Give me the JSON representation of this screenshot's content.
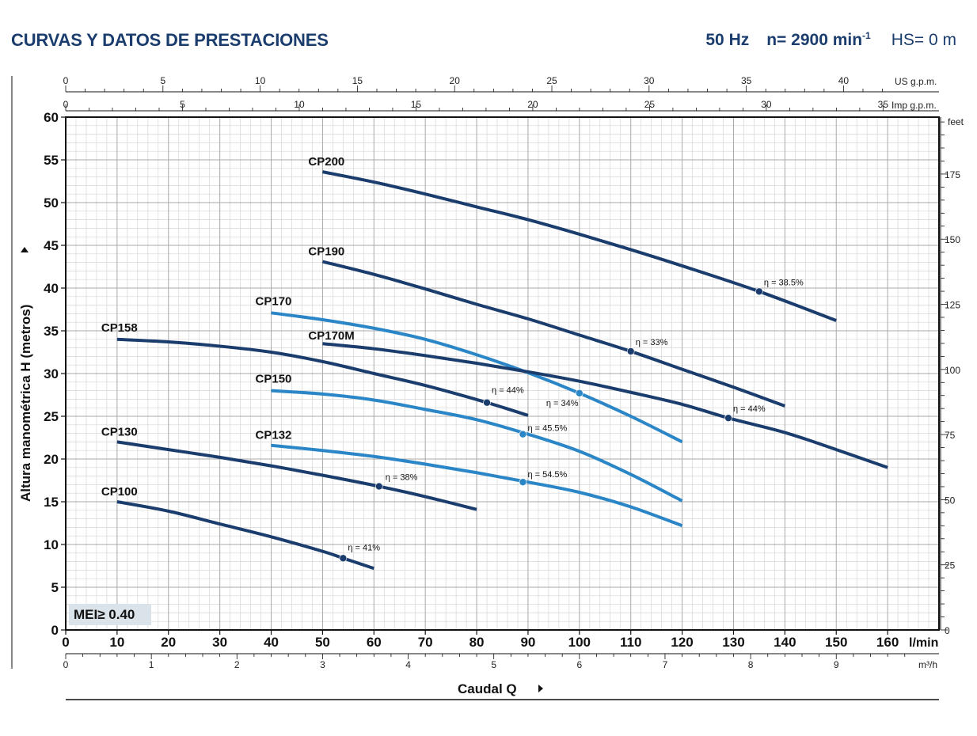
{
  "header": {
    "title": "CURVAS Y DATOS DE PRESTACIONES",
    "freq": "50 Hz",
    "speed": "n= 2900 min",
    "speed_exp": "-1",
    "hs": "HS= 0 m"
  },
  "mei_badge": "MEI≥ 0.40",
  "chart_data": {
    "type": "line",
    "title": "CURVAS Y DATOS DE PRESTACIONES",
    "xlabel": "Caudal Q",
    "ylabel": "Altura manométrica H (metros)",
    "x_unit": "l/min",
    "xlim": [
      0,
      170
    ],
    "ylim": [
      0,
      60
    ],
    "x_ticks": [
      0,
      10,
      20,
      30,
      40,
      50,
      60,
      70,
      80,
      90,
      100,
      110,
      120,
      130,
      140,
      150,
      160
    ],
    "y_ticks": [
      0,
      5,
      10,
      15,
      20,
      25,
      30,
      35,
      40,
      45,
      50,
      55,
      60
    ],
    "grid": true,
    "secondary_axes": {
      "us_gpm": {
        "label": "US g.p.m.",
        "ticks": [
          0,
          5,
          10,
          15,
          20,
          25,
          30,
          35,
          40
        ]
      },
      "imp_gpm": {
        "label": "Imp g.p.m.",
        "ticks": [
          0,
          5,
          10,
          15,
          20,
          25,
          30,
          35
        ]
      },
      "m3h": {
        "label": "m³/h",
        "ticks": [
          0,
          1,
          2,
          3,
          4,
          5,
          6,
          7,
          8,
          9
        ]
      },
      "feet": {
        "label": "feet",
        "ticks": [
          0,
          25,
          50,
          75,
          100,
          125,
          150,
          175
        ]
      }
    },
    "series": [
      {
        "name": "CP100",
        "color": "#1b3d6e",
        "x": [
          10,
          20,
          30,
          40,
          50,
          54,
          60
        ],
        "y": [
          15,
          13.9,
          12.4,
          10.9,
          9.2,
          8.4,
          7.2
        ],
        "eff": {
          "x": 54,
          "y": 8.4,
          "label": "η = 41%"
        }
      },
      {
        "name": "CP130",
        "color": "#1b3d6e",
        "x": [
          10,
          20,
          30,
          40,
          50,
          61,
          70,
          80
        ],
        "y": [
          22,
          21.1,
          20.2,
          19.2,
          18.1,
          16.8,
          15.6,
          14.1
        ],
        "eff": {
          "x": 61,
          "y": 16.8,
          "label": "η = 38%"
        }
      },
      {
        "name": "CP132",
        "color": "#2a86c6",
        "x": [
          40,
          50,
          60,
          70,
          80,
          90,
          100,
          110,
          120
        ],
        "y": [
          21.6,
          21.0,
          20.3,
          19.4,
          18.4,
          17.3,
          16.1,
          14.4,
          12.2
        ],
        "eff": {
          "x": 89,
          "y": 17.3,
          "label": "η = 54.5%"
        }
      },
      {
        "name": "CP150",
        "color": "#2a86c6",
        "x": [
          40,
          50,
          60,
          70,
          80,
          90,
          100,
          110,
          120
        ],
        "y": [
          28,
          27.6,
          26.9,
          25.8,
          24.6,
          22.9,
          20.9,
          18.2,
          15.1
        ],
        "eff": {
          "x": 89,
          "y": 22.9,
          "label": "η = 45.5%"
        }
      },
      {
        "name": "CP158",
        "color": "#1b3d6e",
        "x": [
          10,
          20,
          30,
          40,
          50,
          60,
          70,
          82,
          90
        ],
        "y": [
          34,
          33.7,
          33.2,
          32.5,
          31.4,
          30.0,
          28.6,
          26.6,
          25.1
        ],
        "eff": {
          "x": 82,
          "y": 26.6,
          "label": "η = 44%"
        }
      },
      {
        "name": "CP170",
        "color": "#2a86c6",
        "x": [
          40,
          50,
          60,
          70,
          80,
          90,
          100,
          110,
          120
        ],
        "y": [
          37.1,
          36.3,
          35.3,
          34.0,
          32.2,
          30.1,
          27.7,
          25.0,
          22.0
        ],
        "eff": {
          "x": 100,
          "y": 27.7,
          "label": "η = 34%"
        }
      },
      {
        "name": "CP170M",
        "color": "#1b3d6e",
        "x": [
          50,
          60,
          70,
          80,
          90,
          100,
          110,
          120,
          129,
          140,
          150,
          160
        ],
        "y": [
          33.5,
          32.9,
          32.1,
          31.2,
          30.2,
          29.1,
          27.8,
          26.4,
          24.8,
          23.1,
          21.1,
          19.0
        ],
        "eff": {
          "x": 129,
          "y": 24.8,
          "label": "η = 44%"
        }
      },
      {
        "name": "CP190",
        "color": "#1b3d6e",
        "x": [
          50,
          60,
          70,
          80,
          90,
          100,
          110,
          120,
          130,
          140
        ],
        "y": [
          43.1,
          41.6,
          39.9,
          38.1,
          36.4,
          34.5,
          32.6,
          30.5,
          28.4,
          26.2
        ],
        "eff": {
          "x": 110,
          "y": 32.6,
          "label": "η = 33%"
        }
      },
      {
        "name": "CP200",
        "color": "#1b3d6e",
        "x": [
          50,
          60,
          70,
          80,
          90,
          100,
          110,
          120,
          135,
          150
        ],
        "y": [
          53.6,
          52.4,
          51.0,
          49.5,
          48.0,
          46.3,
          44.5,
          42.6,
          39.6,
          36.2
        ],
        "eff": {
          "x": 135,
          "y": 39.6,
          "label": "η = 38.5%"
        }
      }
    ]
  }
}
